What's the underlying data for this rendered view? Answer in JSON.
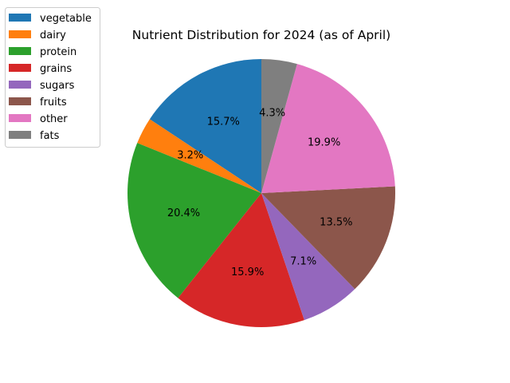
{
  "chart_data": {
    "type": "pie",
    "title": "Nutrient Distribution for 2024 (as of April)",
    "labels": [
      "vegetable",
      "dairy",
      "protein",
      "grains",
      "sugars",
      "fruits",
      "other",
      "fats"
    ],
    "values": [
      15.7,
      3.2,
      20.4,
      15.9,
      7.1,
      13.5,
      19.9,
      4.3
    ],
    "value_labels": [
      "15.7%",
      "3.2%",
      "20.4%",
      "15.9%",
      "7.1%",
      "13.5%",
      "19.9%",
      "4.3%"
    ],
    "colors": [
      "#1f77b4",
      "#ff7f0e",
      "#2ca02c",
      "#d62728",
      "#9467bd",
      "#8c564b",
      "#e377c2",
      "#7f7f7f"
    ],
    "start_angle": 90,
    "direction": "counterclockwise",
    "legend_position": "upper-left"
  }
}
